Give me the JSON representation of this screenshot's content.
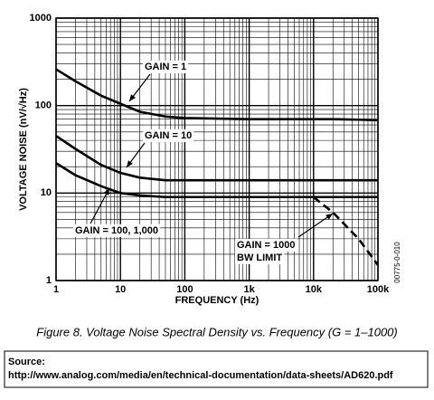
{
  "chart_data": {
    "type": "line",
    "caption": "Figure 8. Voltage Noise Spectral Density vs. Frequency (G = 1–1000)",
    "x_label": "FREQUENCY (Hz)",
    "y_label": "VOLTAGE NOISE (nV/√Hz)",
    "code": "00775-0-010",
    "x": [
      1,
      2,
      5,
      10,
      20,
      50,
      100,
      1000,
      10000,
      20000,
      50000,
      100000
    ],
    "series": [
      {
        "name": "GAIN = 1",
        "color": "#000000",
        "values": [
          260,
          190,
          130,
          105,
          85,
          75,
          72,
          70,
          70,
          70,
          69,
          68
        ]
      },
      {
        "name": "GAIN = 10",
        "color": "#000000",
        "values": [
          45,
          32,
          21,
          17,
          15,
          14,
          14,
          14,
          14,
          14,
          14,
          14
        ]
      },
      {
        "name": "GAIN = 100, 1,000",
        "color": "#000000",
        "values": [
          22,
          16,
          12,
          10,
          9.4,
          9,
          9,
          9,
          9,
          9,
          9,
          9
        ]
      },
      {
        "name": "GAIN = 1000",
        "subname": "BW LIMIT",
        "color": "#000000",
        "dashed": true,
        "values": [
          null,
          null,
          null,
          null,
          null,
          null,
          null,
          null,
          9,
          6,
          3,
          1.5
        ]
      }
    ],
    "xlog": true,
    "ylog": true,
    "grid": true,
    "minor_grid": true,
    "xlim": [
      1,
      100000
    ],
    "ylim": [
      1,
      1000
    ],
    "xticks": [
      1,
      10,
      100,
      {
        "value": 1000,
        "label": "1k"
      },
      {
        "value": 10000,
        "label": "10k"
      },
      {
        "value": 100000,
        "label": "100k"
      }
    ],
    "yticks": [
      1,
      10,
      100,
      1000
    ]
  },
  "source": {
    "label": "Source:",
    "url": "http://www.analog.com/media/en/technical-documentation/data-sheets/AD620.pdf"
  }
}
